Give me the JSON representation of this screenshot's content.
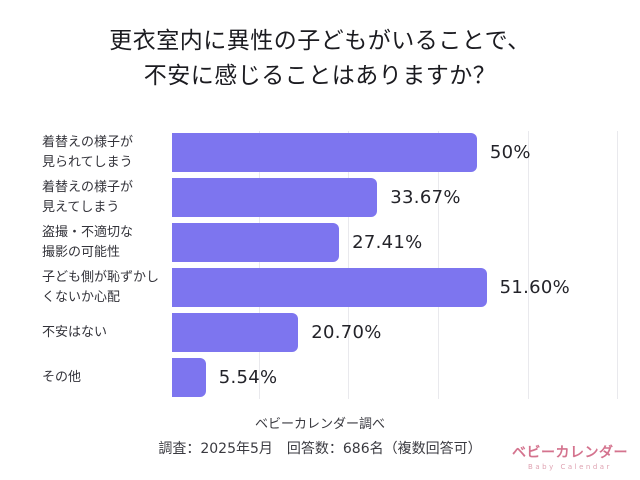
{
  "title": {
    "line1": "更衣室内に異性の子どもがいることで、",
    "line2": "不安に感じることはありますか？"
  },
  "chart_data": {
    "type": "bar",
    "orientation": "horizontal",
    "title": "更衣室内に異性の子どもがいることで、不安に感じることはありますか？",
    "categories": [
      "着替えの様子が見られてしまう",
      "着替えの様子が見えてしまう",
      "盗撮・不適切な撮影の可能性",
      "子ども側が恥ずかしくないか心配",
      "不安はない",
      "その他"
    ],
    "category_label_lines": [
      [
        "着替えの様子が",
        "見られてしまう"
      ],
      [
        "着替えの様子が",
        "見えてしまう"
      ],
      [
        "盗撮・不適切な",
        "撮影の可能性"
      ],
      [
        "子ども側が恥ずかし",
        "くないか心配"
      ],
      [
        "不安はない"
      ],
      [
        "その他"
      ]
    ],
    "values": [
      50,
      33.67,
      27.41,
      51.6,
      20.7,
      5.54
    ],
    "value_labels": [
      "50%",
      "33.67%",
      "27.41%",
      "51.60%",
      "20.70%",
      "5.54%"
    ],
    "xlabel": "",
    "ylabel": "",
    "xlim": [
      0,
      73.8
    ],
    "grid": true,
    "legend": false,
    "bar_color": "#7d75ef"
  },
  "footer": {
    "source": "ベビーカレンダー調べ",
    "survey": "調査：2025年5月　回答数：686名（複数回答可）"
  },
  "logo": {
    "text": "ベビーカレンダー",
    "subtext": "Baby Calendar",
    "color": "#d4738e",
    "sub_color": "#dfa3b2"
  }
}
